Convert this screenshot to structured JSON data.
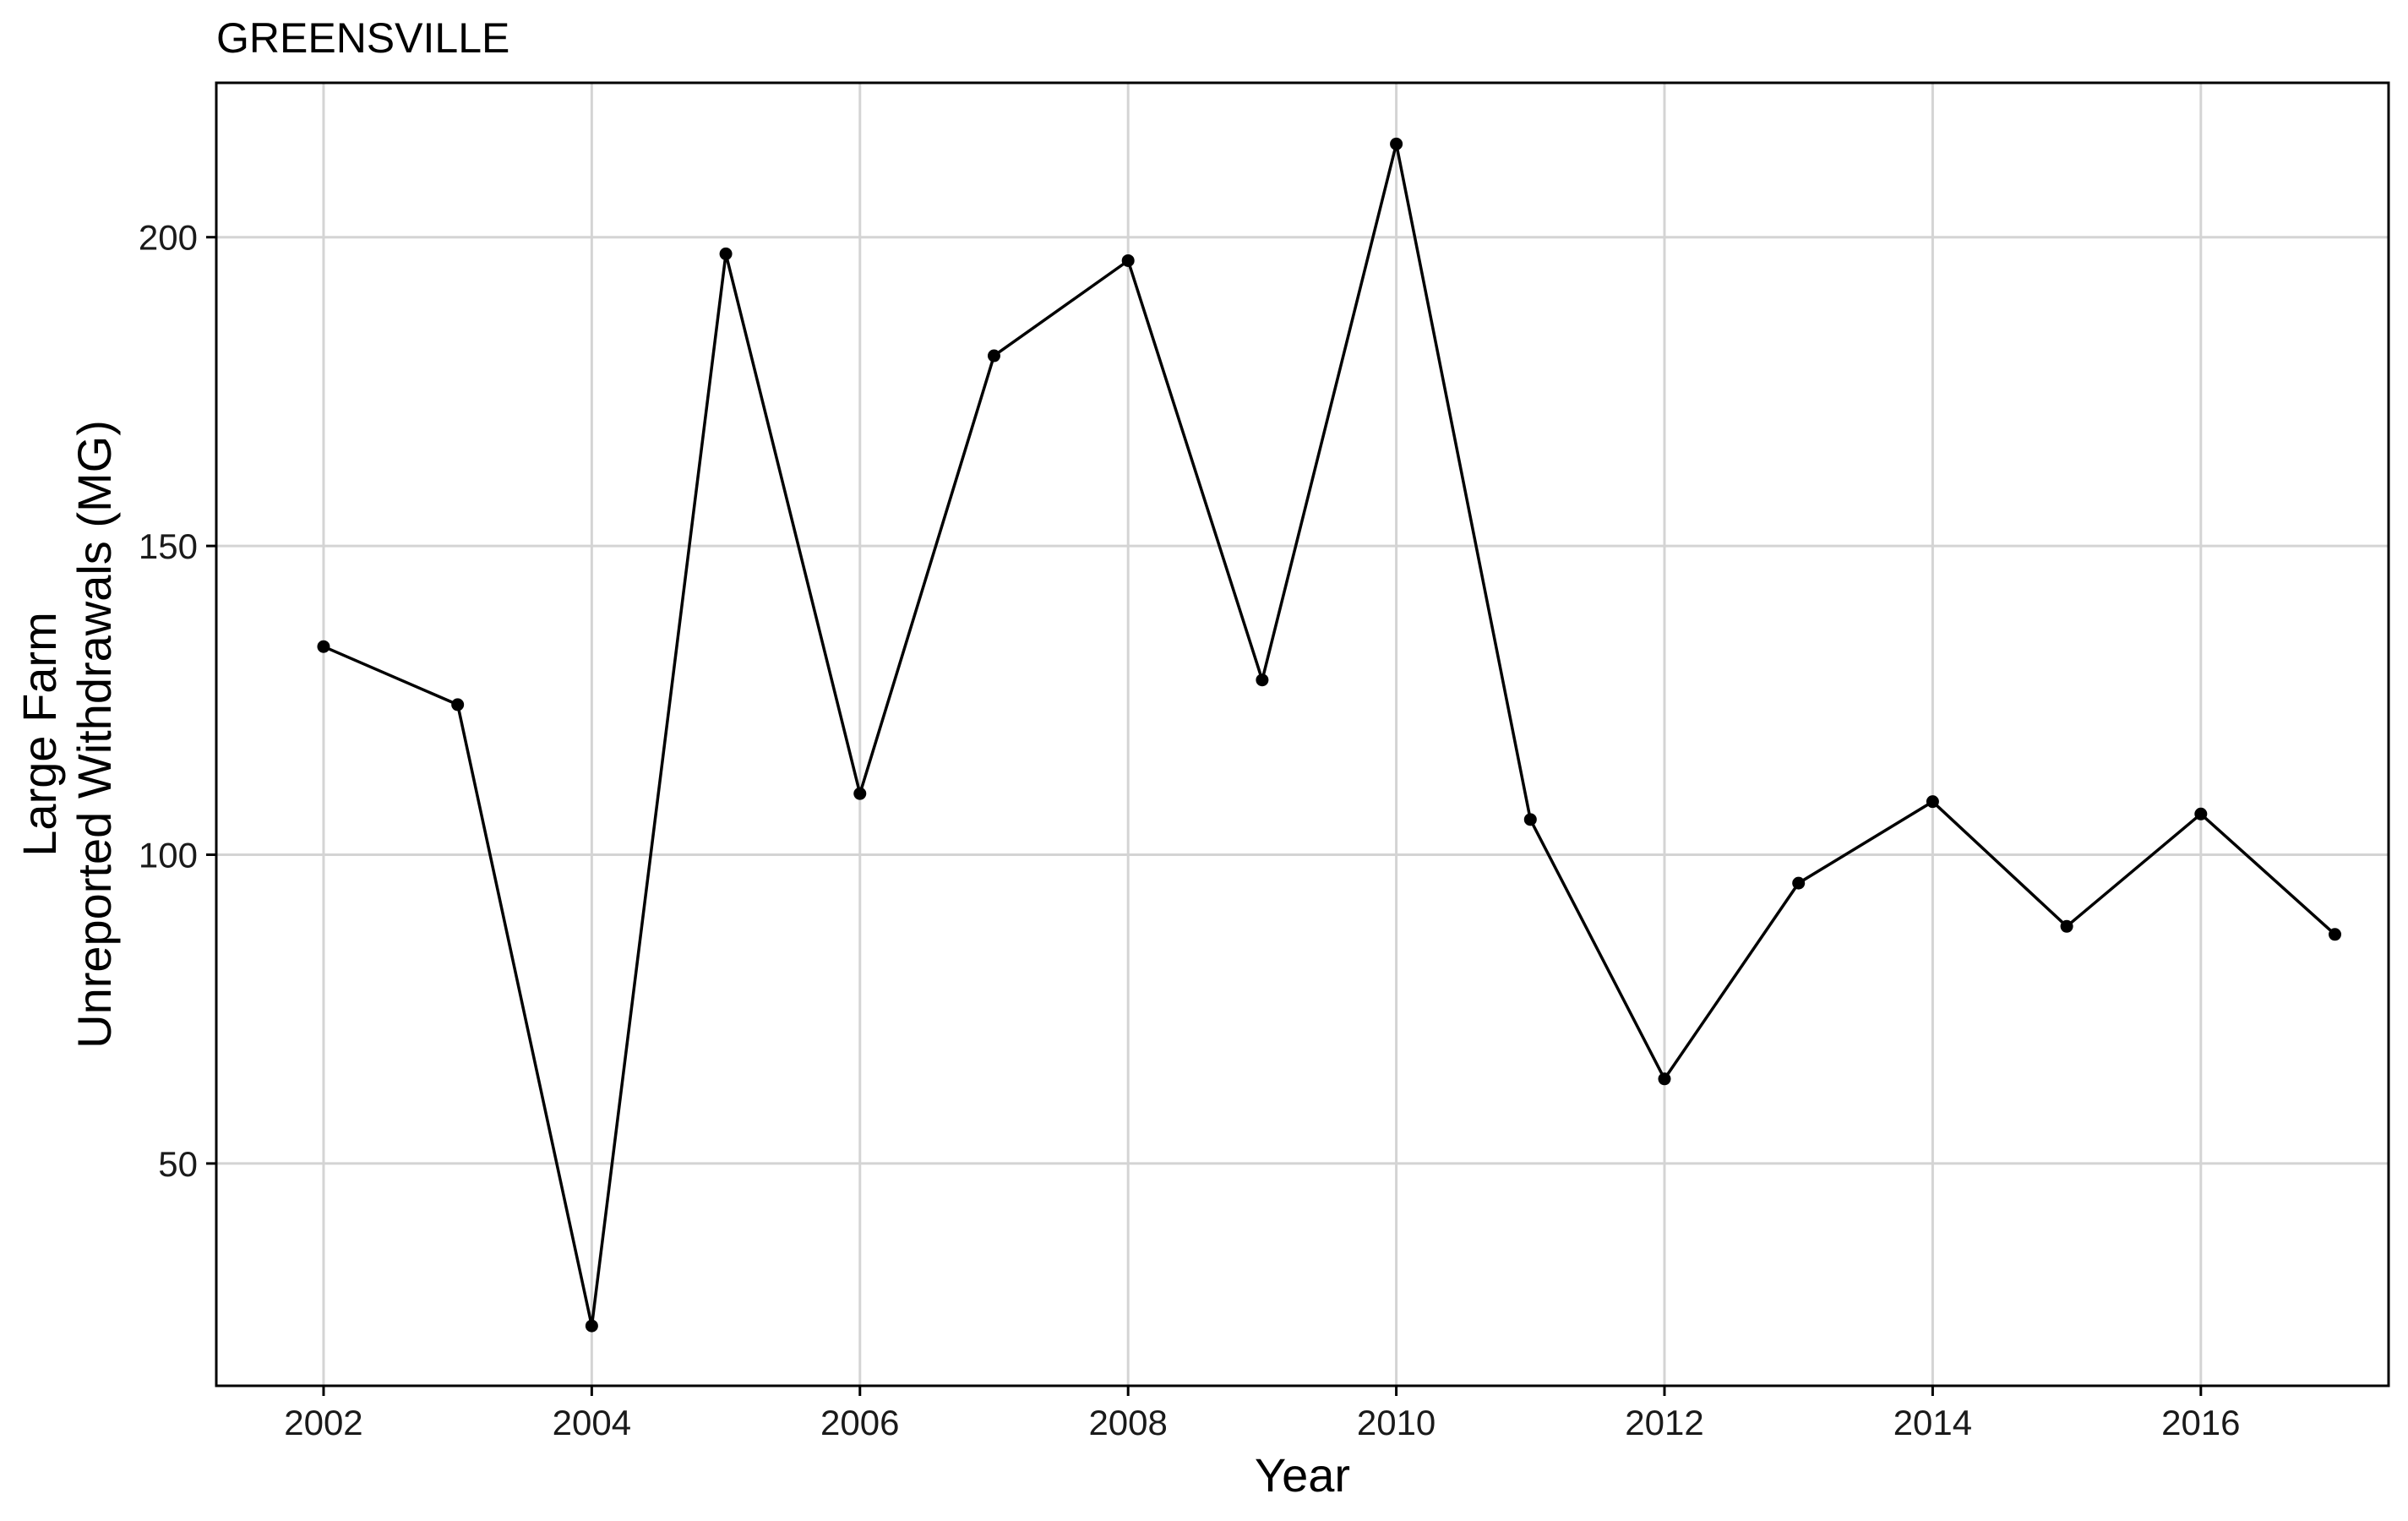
{
  "chart_data": {
    "type": "line",
    "title": "GREENSVILLE",
    "xlabel": "Year",
    "ylabel_lines": [
      "Large Farm",
      "Unreported Withdrawals (MG)"
    ],
    "xlim": [
      2001.2,
      2017.4
    ],
    "ylim": [
      14,
      225
    ],
    "x_ticks": [
      2002,
      2004,
      2006,
      2008,
      2010,
      2012,
      2014,
      2016
    ],
    "y_ticks": [
      50,
      100,
      150,
      200
    ],
    "grid": true,
    "legend": "none",
    "series": [
      {
        "x": [
          2002,
          2003,
          2004,
          2005,
          2006,
          2007,
          2008,
          2009,
          2010,
          2011,
          2012,
          2013,
          2014,
          2015,
          2016,
          2017
        ],
        "y": [
          133.7,
          124.3,
          23.7,
          197.3,
          109.9,
          180.8,
          196.2,
          128.3,
          215.1,
          105.7,
          63.7,
          95.4,
          108.6,
          88.4,
          106.6,
          87.1
        ]
      }
    ],
    "colors": {
      "line": "#000000",
      "point": "#000000",
      "grid": "#d4d4d4"
    }
  }
}
